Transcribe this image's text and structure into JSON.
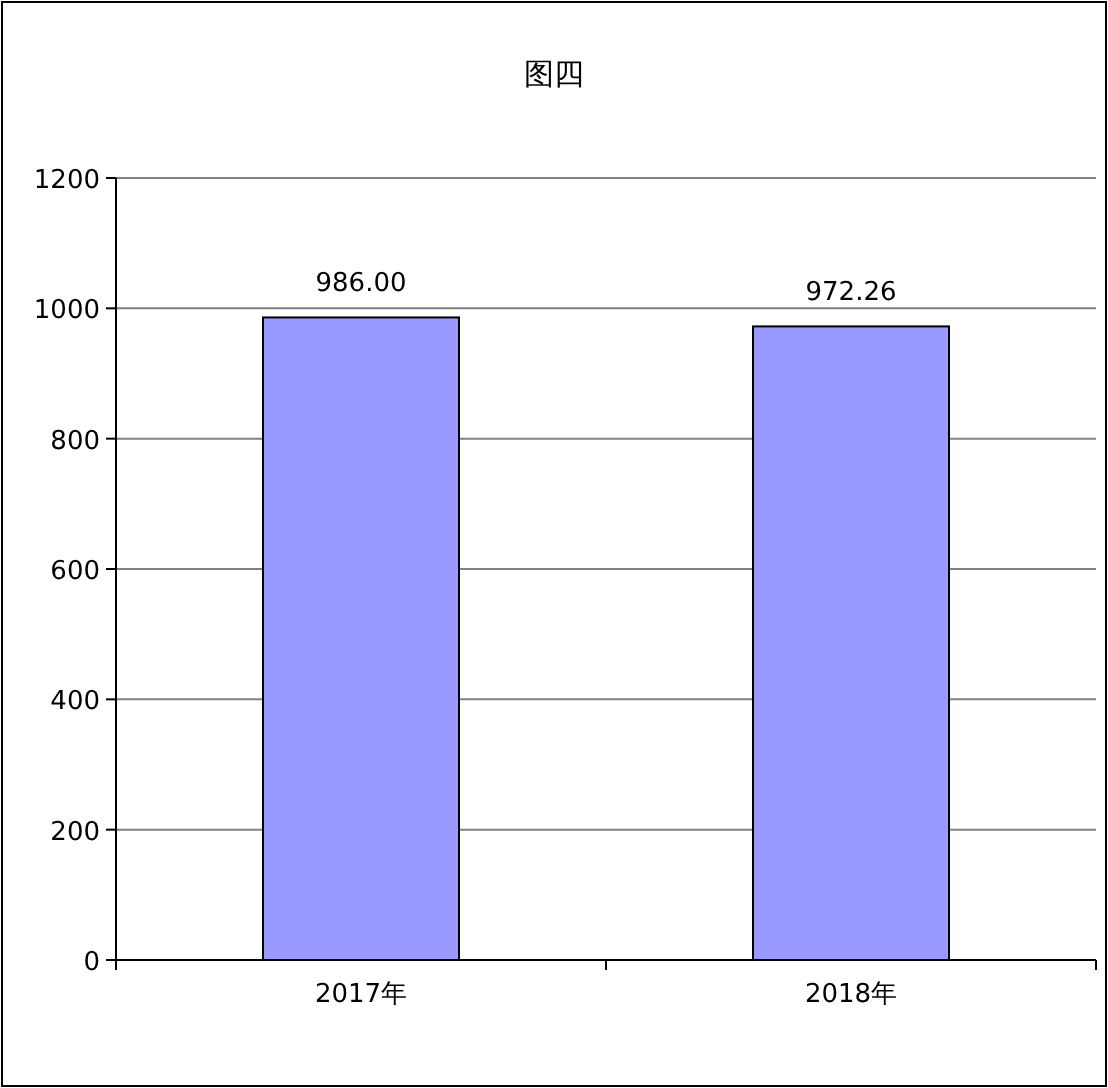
{
  "chart_data": {
    "type": "bar",
    "title": "图四",
    "categories": [
      "2017年",
      "2018年"
    ],
    "values": [
      986.0,
      972.26
    ],
    "value_labels": [
      "986.00",
      "972.26"
    ],
    "color": "#9999ff",
    "ylim": [
      0,
      1200
    ],
    "yticks": [
      0,
      200,
      400,
      600,
      800,
      1000,
      1200
    ],
    "grid": "y"
  }
}
